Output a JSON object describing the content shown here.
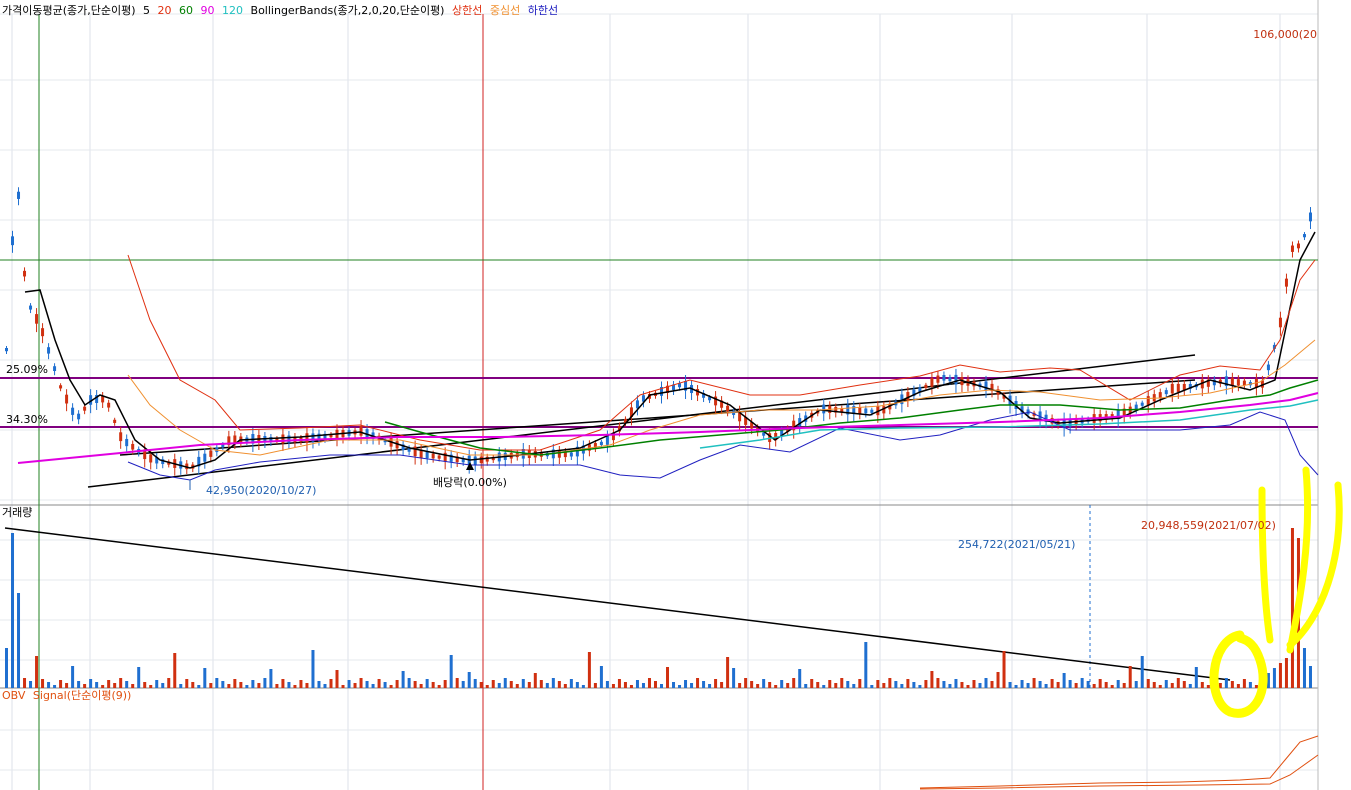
{
  "panels": {
    "price": {
      "legend_ma_title": "가격이동평균(종가,단순이평)",
      "ma_periods": [
        {
          "label": "5",
          "color": "#000000"
        },
        {
          "label": "20",
          "color": "#e03010"
        },
        {
          "label": "60",
          "color": "#008000"
        },
        {
          "label": "90",
          "color": "#e000e0"
        },
        {
          "label": "120",
          "color": "#20c0c0"
        }
      ],
      "legend_bb_title": "BollingerBands(종가,2,0,20,단순이평)",
      "bb_lines": [
        {
          "label": "상한선",
          "color": "#e03010"
        },
        {
          "label": "중심선",
          "color": "#f09030"
        },
        {
          "label": "하한선",
          "color": "#2020c0"
        }
      ],
      "top_price_label": "106,000(20",
      "hline_labels": [
        "25.09%",
        "34.30%"
      ],
      "low_annotation": "42,950(2020/10/27)",
      "dividend_annotation": "배당락(0.00%)"
    },
    "volume": {
      "title": "거래량",
      "peak_annotation": "20,948,559(2021/07/02)",
      "mid_annotation": "254,722(2021/05/21)"
    },
    "obv": {
      "title": "OBV",
      "signal": "Signal(단순이평(9))"
    }
  },
  "colors": {
    "up": "#d03010",
    "down": "#1f6fd0",
    "hline": "#800080",
    "highlight": "#ffff00"
  },
  "chart_data": {
    "type": "candlestick",
    "price_low_marker": 42950,
    "price_high_marker": 106000,
    "volume_peak": 20948559,
    "volume_mid": 254722,
    "candles_dir": "ddduduudduuddudduuuududuudduuduuddudduuuddudduuduuuddduuuduudduduudduuduuududdduuudduuduuudduuddduudduuuudduududdddudduuuduuuuduuduudduuduuuddudduuuddudduuuddduuudduuuddddudduuddudduuuuduudduuuduuudduududuuuduudduuuudd"
  }
}
